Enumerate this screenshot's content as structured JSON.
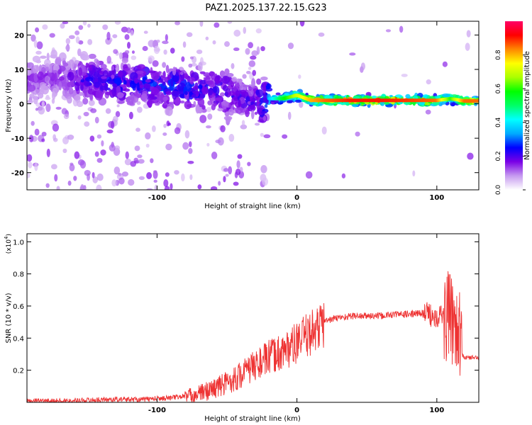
{
  "title": "PAZ1.2025.137.22.15.G23",
  "chart_data": [
    {
      "type": "heatmap",
      "xlabel": "Height of straight line (km)",
      "ylabel": "Frequency (Hz)",
      "xlim": [
        -193,
        130
      ],
      "ylim": [
        -25,
        24
      ],
      "x_ticks": [
        -100,
        0,
        100
      ],
      "y_ticks": [
        -20,
        -10,
        0,
        10,
        20
      ],
      "colorbar": {
        "label": "Normalized spectral amplitude",
        "range": [
          0,
          1
        ],
        "ticks": [
          "0.0",
          "0.2",
          "0.4",
          "0.6",
          "0.8"
        ],
        "colors": [
          "#ffffff",
          "#c79bf0",
          "#7a00e6",
          "#0000ff",
          "#00aaff",
          "#00ffff",
          "#00ff66",
          "#00ff00",
          "#aaff00",
          "#ffff00",
          "#ff8800",
          "#ff0000",
          "#ff0066"
        ]
      },
      "ridge": {
        "x": [
          -190,
          -175,
          -160,
          -150,
          -140,
          -130,
          -120,
          -110,
          -100,
          -90,
          -80,
          -70,
          -60,
          -50,
          -40,
          -30,
          -25,
          -20,
          -10,
          0,
          10,
          20,
          40,
          60,
          80,
          100,
          110,
          120,
          130
        ],
        "y": [
          7,
          8,
          7,
          7,
          7,
          6,
          6,
          6,
          5,
          5,
          5,
          4,
          4,
          3,
          2,
          1,
          0.5,
          1.5,
          1.5,
          2.5,
          1,
          1,
          1,
          1,
          1,
          1,
          1.5,
          0.8,
          0.8
        ],
        "amp": [
          0.15,
          0.15,
          0.2,
          0.25,
          0.25,
          0.25,
          0.25,
          0.28,
          0.28,
          0.28,
          0.28,
          0.25,
          0.25,
          0.25,
          0.22,
          0.22,
          0.3,
          0.35,
          0.55,
          0.7,
          0.8,
          0.85,
          0.9,
          0.9,
          0.88,
          0.85,
          0.6,
          0.85,
          0.85
        ]
      }
    },
    {
      "type": "line",
      "xlabel": "Height of straight line (km)",
      "ylabel": "SNR (10 * v/v)",
      "y_scale_label": "(x10",
      "y_scale_exp": "4",
      "xlim": [
        -193,
        130
      ],
      "ylim": [
        0,
        1.05
      ],
      "x_ticks": [
        -100,
        0,
        100
      ],
      "y_ticks": [
        0.2,
        0.4,
        0.6,
        0.8,
        1.0
      ],
      "y_tick_labels": [
        "0.2",
        "0.4",
        "0.6",
        "0.8",
        "1.0"
      ],
      "series": [
        {
          "color": "#ee3333",
          "x": [
            -193,
            -170,
            -150,
            -130,
            -110,
            -100,
            -90,
            -80,
            -70,
            -60,
            -50,
            -40,
            -30,
            -20,
            -10,
            0,
            10,
            20,
            30,
            40,
            50,
            60,
            70,
            80,
            90,
            100,
            105,
            108,
            110,
            112,
            115,
            118,
            120,
            125,
            130
          ],
          "y": [
            0.01,
            0.01,
            0.015,
            0.02,
            0.02,
            0.025,
            0.03,
            0.04,
            0.06,
            0.09,
            0.13,
            0.18,
            0.24,
            0.29,
            0.33,
            0.38,
            0.45,
            0.51,
            0.53,
            0.54,
            0.54,
            0.54,
            0.55,
            0.55,
            0.56,
            0.55,
            0.55,
            0.56,
            0.55,
            0.54,
            0.52,
            0.3,
            0.28,
            0.28,
            0.28
          ]
        }
      ]
    }
  ]
}
